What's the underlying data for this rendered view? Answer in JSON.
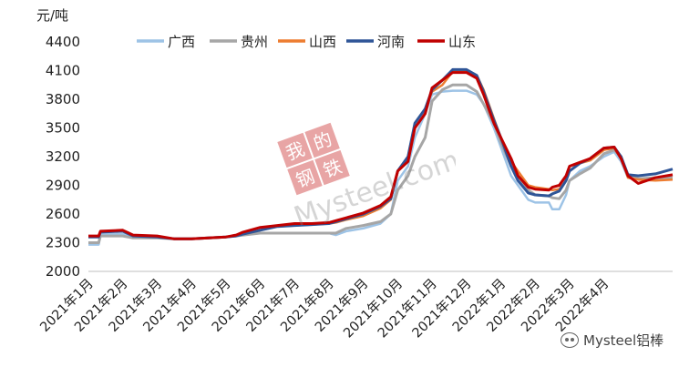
{
  "chart_data": {
    "type": "line",
    "unit_label": "元/吨",
    "ylim": [
      2000,
      4500
    ],
    "yticks": [
      2000,
      2300,
      2600,
      2900,
      3200,
      3500,
      3800,
      4100,
      4400
    ],
    "x_range": [
      0,
      17
    ],
    "xticks": [
      "2021年1月",
      "2021年2月",
      "2021年3月",
      "2021年4月",
      "2021年5月",
      "2021年6月",
      "2021年7月",
      "2021年8月",
      "2021年9月",
      "2021年10月",
      "2021年11月",
      "2021年12月",
      "2022年1月",
      "2022年2月",
      "2022年3月",
      "2022年4月"
    ],
    "legend_position": "top",
    "grid": false,
    "series": [
      {
        "name": "广西",
        "color": "#9dc3e6",
        "width": 2.5,
        "points": [
          [
            0,
            2280
          ],
          [
            0.3,
            2280
          ],
          [
            0.35,
            2390
          ],
          [
            1.0,
            2390
          ],
          [
            1.3,
            2360
          ],
          [
            2.0,
            2350
          ],
          [
            2.5,
            2340
          ],
          [
            3.0,
            2340
          ],
          [
            3.5,
            2350
          ],
          [
            4.0,
            2360
          ],
          [
            4.3,
            2370
          ],
          [
            4.5,
            2380
          ],
          [
            5.0,
            2400
          ],
          [
            5.5,
            2400
          ],
          [
            6.0,
            2400
          ],
          [
            6.5,
            2400
          ],
          [
            7.0,
            2400
          ],
          [
            7.2,
            2380
          ],
          [
            7.5,
            2420
          ],
          [
            8.0,
            2450
          ],
          [
            8.5,
            2500
          ],
          [
            8.8,
            2600
          ],
          [
            9.0,
            2950
          ],
          [
            9.3,
            3100
          ],
          [
            9.5,
            3400
          ],
          [
            9.8,
            3650
          ],
          [
            10.0,
            3850
          ],
          [
            10.3,
            3880
          ],
          [
            10.6,
            3890
          ],
          [
            11.0,
            3890
          ],
          [
            11.3,
            3850
          ],
          [
            11.5,
            3750
          ],
          [
            11.8,
            3500
          ],
          [
            12.0,
            3300
          ],
          [
            12.3,
            3000
          ],
          [
            12.5,
            2900
          ],
          [
            12.8,
            2750
          ],
          [
            13.0,
            2720
          ],
          [
            13.4,
            2720
          ],
          [
            13.5,
            2650
          ],
          [
            13.7,
            2650
          ],
          [
            13.9,
            2800
          ],
          [
            14.0,
            2950
          ],
          [
            14.3,
            3050
          ],
          [
            14.6,
            3100
          ],
          [
            15.0,
            3200
          ],
          [
            15.3,
            3250
          ],
          [
            15.5,
            3150
          ],
          [
            15.7,
            2980
          ],
          [
            16.0,
            2970
          ],
          [
            16.5,
            2970
          ],
          [
            17.0,
            2970
          ]
        ]
      },
      {
        "name": "贵州",
        "color": "#a6a6a6",
        "width": 3,
        "points": [
          [
            0,
            2300
          ],
          [
            0.3,
            2300
          ],
          [
            0.35,
            2370
          ],
          [
            1.0,
            2370
          ],
          [
            1.3,
            2350
          ],
          [
            2.0,
            2350
          ],
          [
            2.5,
            2340
          ],
          [
            3.0,
            2340
          ],
          [
            3.5,
            2350
          ],
          [
            4.0,
            2360
          ],
          [
            4.3,
            2370
          ],
          [
            4.5,
            2380
          ],
          [
            5.0,
            2400
          ],
          [
            5.5,
            2400
          ],
          [
            6.0,
            2400
          ],
          [
            6.5,
            2400
          ],
          [
            7.0,
            2400
          ],
          [
            7.2,
            2400
          ],
          [
            7.5,
            2450
          ],
          [
            8.0,
            2480
          ],
          [
            8.5,
            2520
          ],
          [
            8.8,
            2600
          ],
          [
            9.0,
            2850
          ],
          [
            9.3,
            3000
          ],
          [
            9.5,
            3200
          ],
          [
            9.8,
            3400
          ],
          [
            10.0,
            3780
          ],
          [
            10.3,
            3900
          ],
          [
            10.6,
            3950
          ],
          [
            11.0,
            3950
          ],
          [
            11.3,
            3880
          ],
          [
            11.5,
            3750
          ],
          [
            11.8,
            3550
          ],
          [
            12.0,
            3350
          ],
          [
            12.3,
            3100
          ],
          [
            12.5,
            3000
          ],
          [
            12.8,
            2850
          ],
          [
            13.0,
            2800
          ],
          [
            13.4,
            2790
          ],
          [
            13.5,
            2770
          ],
          [
            13.7,
            2760
          ],
          [
            13.9,
            2850
          ],
          [
            14.0,
            2950
          ],
          [
            14.3,
            3020
          ],
          [
            14.6,
            3080
          ],
          [
            15.0,
            3230
          ],
          [
            15.3,
            3270
          ],
          [
            15.5,
            3200
          ],
          [
            15.7,
            3000
          ],
          [
            16.0,
            2970
          ],
          [
            16.5,
            2980
          ],
          [
            17.0,
            2980
          ]
        ]
      },
      {
        "name": "山西",
        "color": "#ed7d31",
        "width": 2.5,
        "points": [
          [
            0,
            2360
          ],
          [
            0.3,
            2360
          ],
          [
            0.35,
            2410
          ],
          [
            1.0,
            2420
          ],
          [
            1.3,
            2370
          ],
          [
            2.0,
            2360
          ],
          [
            2.5,
            2340
          ],
          [
            3.0,
            2340
          ],
          [
            3.5,
            2350
          ],
          [
            4.0,
            2360
          ],
          [
            4.3,
            2370
          ],
          [
            4.5,
            2390
          ],
          [
            5.0,
            2430
          ],
          [
            5.5,
            2470
          ],
          [
            6.0,
            2480
          ],
          [
            6.5,
            2490
          ],
          [
            7.0,
            2500
          ],
          [
            7.2,
            2510
          ],
          [
            7.5,
            2540
          ],
          [
            8.0,
            2580
          ],
          [
            8.5,
            2660
          ],
          [
            8.8,
            2750
          ],
          [
            9.0,
            3050
          ],
          [
            9.3,
            3200
          ],
          [
            9.5,
            3550
          ],
          [
            9.8,
            3700
          ],
          [
            10.0,
            3880
          ],
          [
            10.3,
            3950
          ],
          [
            10.6,
            4090
          ],
          [
            11.0,
            4090
          ],
          [
            11.3,
            4050
          ],
          [
            11.5,
            3900
          ],
          [
            11.8,
            3600
          ],
          [
            12.0,
            3400
          ],
          [
            12.3,
            3150
          ],
          [
            12.5,
            3050
          ],
          [
            12.8,
            2900
          ],
          [
            13.0,
            2880
          ],
          [
            13.4,
            2860
          ],
          [
            13.5,
            2850
          ],
          [
            13.7,
            2860
          ],
          [
            13.9,
            2950
          ],
          [
            14.0,
            3050
          ],
          [
            14.3,
            3130
          ],
          [
            14.6,
            3160
          ],
          [
            15.0,
            3270
          ],
          [
            15.3,
            3290
          ],
          [
            15.5,
            3200
          ],
          [
            15.7,
            2980
          ],
          [
            16.0,
            2960
          ],
          [
            16.5,
            2950
          ],
          [
            17.0,
            2960
          ]
        ]
      },
      {
        "name": "河南",
        "color": "#2f5597",
        "width": 3,
        "points": [
          [
            0,
            2360
          ],
          [
            0.3,
            2360
          ],
          [
            0.35,
            2410
          ],
          [
            1.0,
            2420
          ],
          [
            1.3,
            2370
          ],
          [
            2.0,
            2360
          ],
          [
            2.5,
            2340
          ],
          [
            3.0,
            2340
          ],
          [
            3.5,
            2350
          ],
          [
            4.0,
            2360
          ],
          [
            4.3,
            2370
          ],
          [
            4.5,
            2390
          ],
          [
            5.0,
            2430
          ],
          [
            5.5,
            2470
          ],
          [
            6.0,
            2480
          ],
          [
            6.5,
            2490
          ],
          [
            7.0,
            2500
          ],
          [
            7.2,
            2520
          ],
          [
            7.5,
            2550
          ],
          [
            8.0,
            2600
          ],
          [
            8.5,
            2680
          ],
          [
            8.8,
            2760
          ],
          [
            9.0,
            3050
          ],
          [
            9.3,
            3200
          ],
          [
            9.5,
            3550
          ],
          [
            9.8,
            3700
          ],
          [
            10.0,
            3900
          ],
          [
            10.3,
            4000
          ],
          [
            10.6,
            4110
          ],
          [
            11.0,
            4110
          ],
          [
            11.3,
            4050
          ],
          [
            11.5,
            3880
          ],
          [
            11.8,
            3580
          ],
          [
            12.0,
            3400
          ],
          [
            12.3,
            3100
          ],
          [
            12.5,
            2950
          ],
          [
            12.8,
            2820
          ],
          [
            13.0,
            2800
          ],
          [
            13.4,
            2790
          ],
          [
            13.5,
            2810
          ],
          [
            13.7,
            2840
          ],
          [
            13.9,
            2950
          ],
          [
            14.0,
            3050
          ],
          [
            14.3,
            3130
          ],
          [
            14.6,
            3180
          ],
          [
            15.0,
            3290
          ],
          [
            15.3,
            3300
          ],
          [
            15.5,
            3200
          ],
          [
            15.7,
            3010
          ],
          [
            16.0,
            3000
          ],
          [
            16.5,
            3020
          ],
          [
            17.0,
            3070
          ]
        ]
      },
      {
        "name": "山东",
        "color": "#c00000",
        "width": 3,
        "points": [
          [
            0,
            2370
          ],
          [
            0.3,
            2370
          ],
          [
            0.35,
            2420
          ],
          [
            1.0,
            2430
          ],
          [
            1.3,
            2380
          ],
          [
            2.0,
            2370
          ],
          [
            2.5,
            2340
          ],
          [
            3.0,
            2340
          ],
          [
            3.5,
            2350
          ],
          [
            4.0,
            2360
          ],
          [
            4.3,
            2380
          ],
          [
            4.5,
            2410
          ],
          [
            5.0,
            2460
          ],
          [
            5.5,
            2480
          ],
          [
            6.0,
            2500
          ],
          [
            6.5,
            2500
          ],
          [
            7.0,
            2510
          ],
          [
            7.2,
            2530
          ],
          [
            7.5,
            2560
          ],
          [
            8.0,
            2610
          ],
          [
            8.5,
            2690
          ],
          [
            8.8,
            2780
          ],
          [
            9.0,
            3050
          ],
          [
            9.3,
            3150
          ],
          [
            9.5,
            3500
          ],
          [
            9.8,
            3650
          ],
          [
            10.0,
            3920
          ],
          [
            10.3,
            4000
          ],
          [
            10.6,
            4080
          ],
          [
            11.0,
            4080
          ],
          [
            11.3,
            4020
          ],
          [
            11.5,
            3850
          ],
          [
            11.8,
            3550
          ],
          [
            12.0,
            3400
          ],
          [
            12.3,
            3180
          ],
          [
            12.5,
            3000
          ],
          [
            12.8,
            2880
          ],
          [
            13.0,
            2860
          ],
          [
            13.4,
            2850
          ],
          [
            13.5,
            2880
          ],
          [
            13.7,
            2900
          ],
          [
            13.9,
            3000
          ],
          [
            14.0,
            3100
          ],
          [
            14.3,
            3140
          ],
          [
            14.6,
            3180
          ],
          [
            15.0,
            3290
          ],
          [
            15.3,
            3300
          ],
          [
            15.5,
            3180
          ],
          [
            15.7,
            3000
          ],
          [
            16.0,
            2920
          ],
          [
            16.5,
            2980
          ],
          [
            17.0,
            3010
          ]
        ]
      }
    ]
  },
  "watermark": {
    "logo_chars": [
      "我",
      "的",
      "钢",
      "铁"
    ],
    "text": "Mysteel.com"
  },
  "source_logo": "Mysteel铝棒"
}
